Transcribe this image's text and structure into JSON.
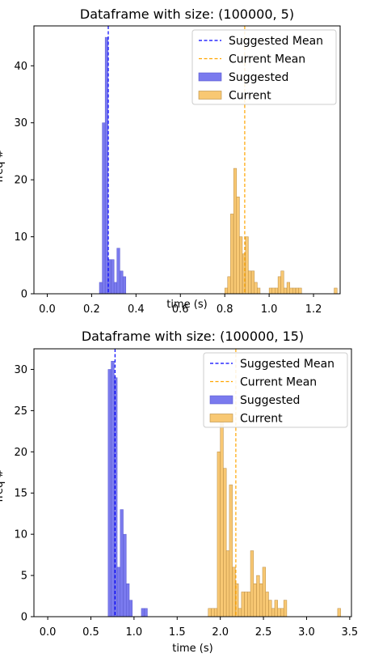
{
  "chart_data": [
    {
      "type": "bar",
      "title": "Dataframe with size: (100000, 5)",
      "xlabel": "time (s)",
      "ylabel": "freq #",
      "xlim": [
        -0.06,
        1.32
      ],
      "ylim": [
        0,
        47
      ],
      "xticks": [
        0.0,
        0.2,
        0.4,
        0.6,
        0.8,
        1.0,
        1.2
      ],
      "xtick_labels": [
        "0.0",
        "0.2",
        "0.4",
        "0.6",
        "0.8",
        "1.0",
        "1.2"
      ],
      "yticks": [
        0,
        10,
        20,
        30,
        40
      ],
      "ytick_labels": [
        "0",
        "10",
        "20",
        "30",
        "40"
      ],
      "grid": false,
      "legend_position": "top-right",
      "legend": [
        {
          "label": "Suggested Mean",
          "kind": "dashed-line",
          "color": "#0000ff"
        },
        {
          "label": "Current Mean",
          "kind": "dashed-line",
          "color": "#ffa500"
        },
        {
          "label": "Suggested",
          "kind": "patch",
          "color": "#7a7aee"
        },
        {
          "label": "Current",
          "kind": "patch",
          "color": "#f8c873"
        }
      ],
      "series": [
        {
          "name": "Suggested",
          "color": "#7a7aee",
          "edge": "#5a5ad0",
          "bin_width": 0.0133,
          "x": [
            0.235,
            0.248,
            0.261,
            0.274,
            0.288,
            0.301,
            0.314,
            0.328,
            0.341
          ],
          "values": [
            2,
            30,
            45,
            6,
            6,
            2,
            8,
            4,
            3
          ]
        },
        {
          "name": "Current",
          "color": "#f8c873",
          "edge": "#b88a40",
          "bin_width": 0.0133,
          "x": [
            0.8,
            0.813,
            0.826,
            0.84,
            0.853,
            0.866,
            0.88,
            0.893,
            0.906,
            0.92,
            0.933,
            0.946,
            1.0,
            1.013,
            1.026,
            1.04,
            1.053,
            1.066,
            1.08,
            1.093,
            1.106,
            1.12,
            1.133,
            1.293
          ],
          "values": [
            1,
            3,
            14,
            22,
            17,
            10,
            7,
            10,
            4,
            4,
            2,
            1,
            1,
            1,
            1,
            3,
            4,
            1,
            2,
            1,
            1,
            1,
            1,
            1
          ]
        }
      ],
      "mean_lines": [
        {
          "name": "Suggested Mean",
          "x": 0.275,
          "color": "#0000ff"
        },
        {
          "name": "Current Mean",
          "x": 0.89,
          "color": "#ffa500"
        }
      ]
    },
    {
      "type": "bar",
      "title": "Dataframe with size: (100000, 15)",
      "xlabel": "time (s)",
      "ylabel": "freq #",
      "xlim": [
        -0.16,
        3.52
      ],
      "ylim": [
        0,
        32.5
      ],
      "xticks": [
        0.0,
        0.5,
        1.0,
        1.5,
        2.0,
        2.5,
        3.0,
        3.5
      ],
      "xtick_labels": [
        "0.0",
        "0.5",
        "1.0",
        "1.5",
        "2.0",
        "2.5",
        "3.0",
        "3.5"
      ],
      "yticks": [
        0,
        5,
        10,
        15,
        20,
        25,
        30
      ],
      "ytick_labels": [
        "0",
        "5",
        "10",
        "15",
        "20",
        "25",
        "30"
      ],
      "grid": false,
      "legend_position": "top-right",
      "legend": [
        {
          "label": "Suggested Mean",
          "kind": "dashed-line",
          "color": "#0000ff"
        },
        {
          "label": "Current Mean",
          "kind": "dashed-line",
          "color": "#ffa500"
        },
        {
          "label": "Suggested",
          "kind": "patch",
          "color": "#7a7aee"
        },
        {
          "label": "Current",
          "kind": "patch",
          "color": "#f8c873"
        }
      ],
      "series": [
        {
          "name": "Suggested",
          "color": "#7a7aee",
          "edge": "#5a5ad0",
          "bin_width": 0.035,
          "x": [
            0.7,
            0.735,
            0.77,
            0.805,
            0.84,
            0.875,
            0.91,
            0.945,
            0.98,
            1.015,
            1.05,
            1.085,
            1.12
          ],
          "values": [
            30,
            31,
            29,
            6,
            13,
            10,
            4,
            2,
            0,
            0,
            0,
            1,
            1
          ]
        },
        {
          "name": "Current",
          "color": "#f8c873",
          "edge": "#b88a40",
          "bin_width": 0.035,
          "x": [
            1.86,
            1.895,
            1.93,
            1.965,
            2.0,
            2.035,
            2.07,
            2.105,
            2.14,
            2.175,
            2.21,
            2.245,
            2.28,
            2.315,
            2.35,
            2.385,
            2.42,
            2.455,
            2.49,
            2.525,
            2.56,
            2.595,
            2.63,
            2.665,
            2.7,
            2.735,
            3.36
          ],
          "values": [
            1,
            1,
            1,
            20,
            24,
            18,
            8,
            16,
            6,
            4,
            1,
            3,
            3,
            3,
            8,
            4,
            5,
            4,
            6,
            3,
            2,
            1,
            2,
            1,
            1,
            2,
            1
          ]
        }
      ],
      "mean_lines": [
        {
          "name": "Suggested Mean",
          "x": 0.78,
          "color": "#0000ff"
        },
        {
          "name": "Current Mean",
          "x": 2.18,
          "color": "#ffa500"
        }
      ]
    }
  ]
}
